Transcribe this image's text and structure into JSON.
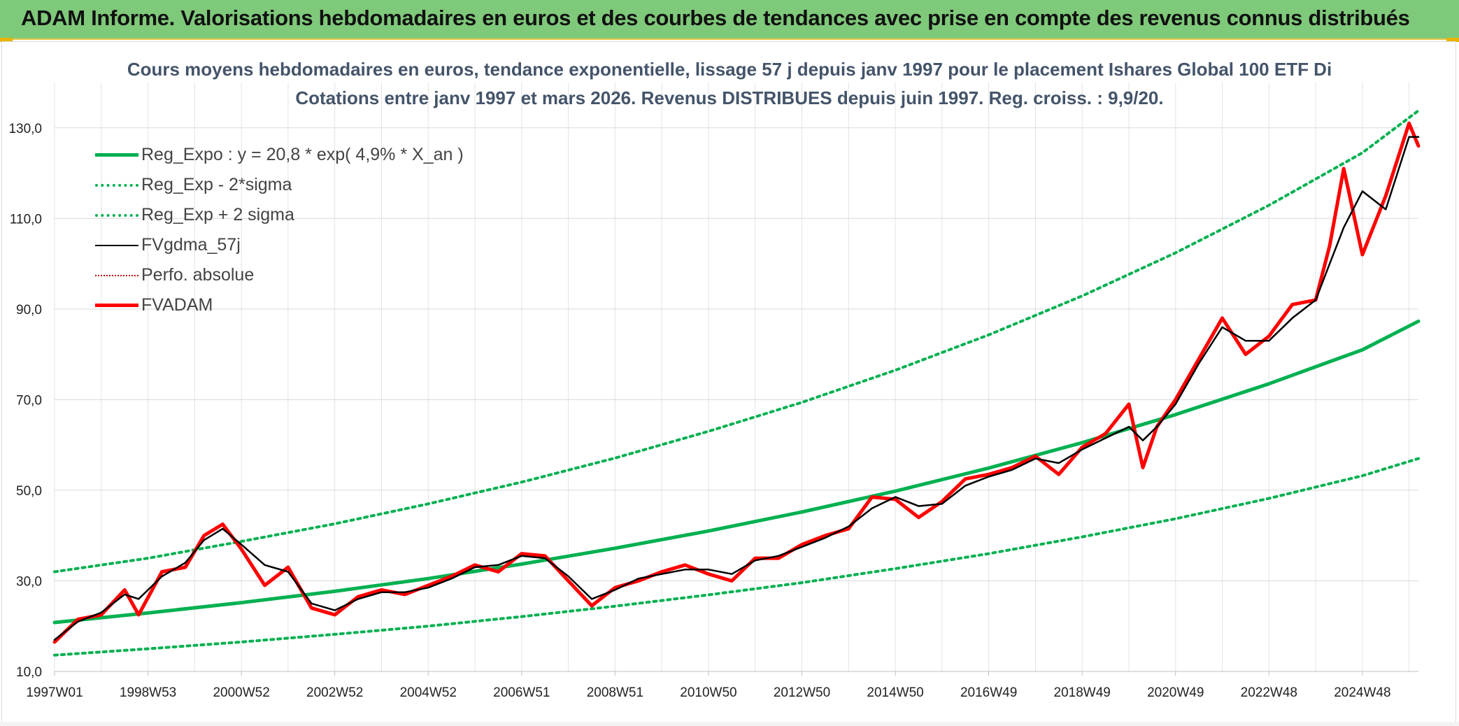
{
  "banner": {
    "title": "ADAM Informe. Valorisations hebdomadaires en euros et des courbes de tendances avec prise en compte des revenus connus distribués"
  },
  "colors": {
    "banner_bg": "#7fc97a",
    "regression": "#00b050",
    "smoothed": "#000000",
    "price": "#ff0000",
    "title_text": "#44546a"
  },
  "chart_data": {
    "type": "line",
    "title_line1": "Cours moyens hebdomadaires en euros, tendance exponentielle, lissage 57 j depuis janv 1997 pour le placement Ishares Global 100 ETF Di",
    "title_line2": "Cotations entre janv 1997 et mars 2026. Revenus DISTRIBUES depuis juin 1997. Reg. croiss. : 9,9/20.",
    "x_range": [
      1997.0,
      2026.2
    ],
    "ylim": [
      10,
      140
    ],
    "y_ticks": [
      10,
      30,
      50,
      70,
      90,
      110,
      130
    ],
    "y_tick_labels": [
      "10,0",
      "30,0",
      "50,0",
      "70,0",
      "90,0",
      "110,0",
      "130,0"
    ],
    "x_tick_labels": [
      "1997W01",
      "1998W53",
      "2000W52",
      "2002W52",
      "2004W52",
      "2006W51",
      "2008W51",
      "2010W50",
      "2012W50",
      "2014W50",
      "2016W49",
      "2018W49",
      "2020W49",
      "2022W48",
      "2024W48"
    ],
    "x_tick_values": [
      1997.0,
      1999.0,
      2001.0,
      2003.0,
      2005.0,
      2007.0,
      2009.0,
      2011.0,
      2013.0,
      2015.0,
      2017.0,
      2019.0,
      2021.0,
      2023.0,
      2025.0
    ],
    "grid": true,
    "legend_position": "top-left",
    "series": [
      {
        "name": "Reg_Expo : y = 20,8 * exp( 4,9% *  X_an )",
        "style": "solid-thick",
        "color": "#00b050",
        "x": [
          1997.0,
          1999.0,
          2001.0,
          2003.0,
          2005.0,
          2007.0,
          2009.0,
          2011.0,
          2013.0,
          2015.0,
          2017.0,
          2019.0,
          2021.0,
          2023.0,
          2025.0,
          2026.2
        ],
        "y": [
          20.8,
          22.9,
          25.2,
          27.7,
          30.5,
          33.7,
          37.2,
          41.0,
          45.2,
          49.8,
          54.9,
          60.5,
          66.7,
          73.5,
          81.0,
          87.3
        ]
      },
      {
        "name": "Reg_Exp - 2*sigma",
        "style": "dotted",
        "color": "#00b050",
        "x": [
          1997.0,
          1999.0,
          2001.0,
          2003.0,
          2005.0,
          2007.0,
          2009.0,
          2011.0,
          2013.0,
          2015.0,
          2017.0,
          2019.0,
          2021.0,
          2023.0,
          2025.0,
          2026.2
        ],
        "y": [
          13.6,
          15.0,
          16.5,
          18.2,
          20.0,
          22.1,
          24.4,
          26.9,
          29.6,
          32.7,
          36.0,
          39.7,
          43.7,
          48.2,
          53.2,
          57.0
        ]
      },
      {
        "name": "Reg_Exp + 2 sigma",
        "style": "dotted",
        "color": "#00b050",
        "x": [
          1997.0,
          1999.0,
          2001.0,
          2003.0,
          2005.0,
          2007.0,
          2009.0,
          2011.0,
          2013.0,
          2015.0,
          2017.0,
          2019.0,
          2021.0,
          2023.0,
          2025.0,
          2026.2
        ],
        "y": [
          32.0,
          35.0,
          38.7,
          42.6,
          47.0,
          51.8,
          57.1,
          63.0,
          69.4,
          76.5,
          84.3,
          92.9,
          102.4,
          112.9,
          124.5,
          133.8
        ]
      },
      {
        "name": "FVgdma_57j",
        "style": "solid",
        "color": "#000000",
        "x": [
          1997.0,
          1997.5,
          1998.0,
          1998.5,
          1998.8,
          1999.3,
          1999.8,
          2000.2,
          2000.6,
          2001.0,
          2001.5,
          2002.0,
          2002.5,
          2003.0,
          2003.5,
          2004.0,
          2004.5,
          2005.0,
          2005.5,
          2006.0,
          2006.5,
          2007.0,
          2007.5,
          2008.0,
          2008.5,
          2009.0,
          2009.5,
          2010.0,
          2010.5,
          2011.0,
          2011.5,
          2012.0,
          2012.5,
          2013.0,
          2013.5,
          2014.0,
          2014.5,
          2015.0,
          2015.5,
          2016.0,
          2016.5,
          2017.0,
          2017.5,
          2018.0,
          2018.5,
          2019.0,
          2019.5,
          2020.0,
          2020.3,
          2020.6,
          2021.0,
          2021.5,
          2022.0,
          2022.5,
          2023.0,
          2023.5,
          2024.0,
          2024.3,
          2024.6,
          2025.0,
          2025.5,
          2026.0,
          2026.2
        ],
        "y": [
          17.0,
          21.0,
          23.0,
          27.0,
          26.0,
          31.0,
          34.0,
          39.0,
          41.5,
          38.0,
          33.5,
          32.0,
          25.0,
          23.5,
          26.0,
          27.5,
          27.5,
          28.5,
          30.5,
          33.0,
          33.5,
          35.5,
          35.0,
          31.0,
          26.0,
          28.0,
          30.5,
          31.5,
          32.5,
          32.5,
          31.5,
          34.5,
          35.5,
          37.5,
          39.5,
          42.0,
          46.0,
          48.5,
          46.5,
          47.0,
          51.0,
          53.0,
          54.5,
          57.0,
          56.0,
          59.0,
          61.5,
          64.0,
          61.0,
          64.0,
          69.0,
          78.0,
          86.0,
          83.0,
          83.0,
          88.0,
          92.0,
          100.0,
          108.0,
          116.0,
          112.0,
          128.0,
          128.0
        ]
      },
      {
        "name": "Perfo. absolue",
        "style": "dotted-thin",
        "color": "#c00000",
        "x": [],
        "y": []
      },
      {
        "name": "FVADAM",
        "style": "solid-thick",
        "color": "#ff0000",
        "x": [
          1997.0,
          1997.5,
          1998.0,
          1998.5,
          1998.8,
          1999.3,
          1999.8,
          2000.2,
          2000.6,
          2001.0,
          2001.5,
          2002.0,
          2002.5,
          2003.0,
          2003.5,
          2004.0,
          2004.5,
          2005.0,
          2005.5,
          2006.0,
          2006.5,
          2007.0,
          2007.5,
          2008.0,
          2008.5,
          2009.0,
          2009.5,
          2010.0,
          2010.5,
          2011.0,
          2011.5,
          2012.0,
          2012.5,
          2013.0,
          2013.5,
          2014.0,
          2014.5,
          2015.0,
          2015.5,
          2016.0,
          2016.5,
          2017.0,
          2017.5,
          2018.0,
          2018.5,
          2019.0,
          2019.5,
          2020.0,
          2020.3,
          2020.6,
          2021.0,
          2021.5,
          2022.0,
          2022.5,
          2023.0,
          2023.5,
          2024.0,
          2024.3,
          2024.6,
          2025.0,
          2025.5,
          2026.0,
          2026.2
        ],
        "y": [
          16.5,
          21.5,
          22.5,
          28.0,
          22.5,
          32.0,
          33.0,
          40.0,
          42.5,
          37.0,
          29.0,
          33.0,
          24.0,
          22.5,
          26.5,
          28.0,
          27.0,
          29.0,
          31.0,
          33.5,
          32.0,
          36.0,
          35.5,
          30.0,
          24.5,
          28.5,
          30.0,
          32.0,
          33.5,
          31.5,
          30.0,
          35.0,
          35.0,
          38.0,
          40.0,
          41.5,
          48.5,
          48.0,
          44.0,
          47.5,
          52.5,
          53.5,
          55.0,
          57.5,
          53.5,
          59.5,
          62.5,
          69.0,
          55.0,
          64.0,
          70.0,
          79.0,
          88.0,
          80.0,
          84.0,
          91.0,
          92.0,
          104.0,
          121.0,
          102.0,
          115.0,
          131.0,
          126.0
        ]
      }
    ]
  }
}
